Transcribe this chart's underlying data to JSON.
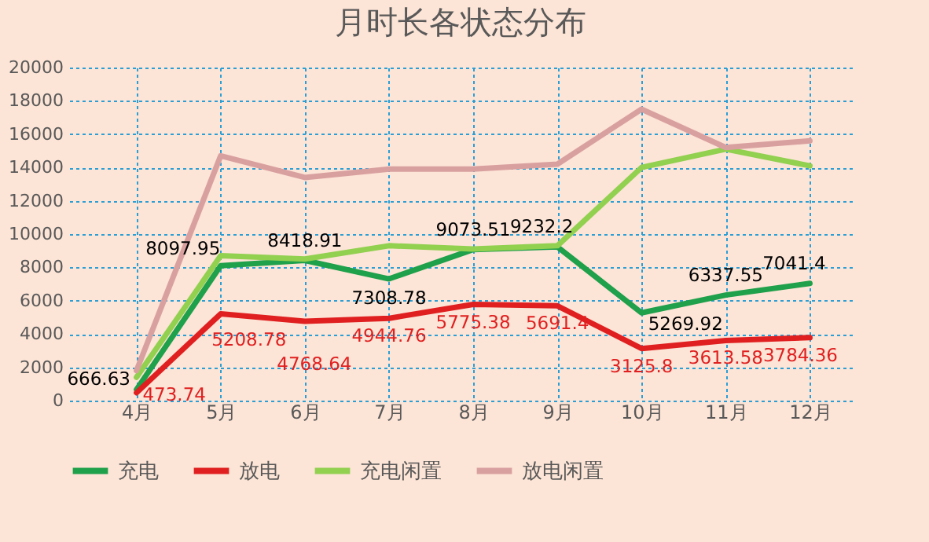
{
  "chart_data": {
    "type": "line",
    "title": "月时长各状态分布",
    "categories": [
      "4月",
      "5月",
      "6月",
      "7月",
      "8月",
      "9月",
      "10月",
      "11月",
      "12月"
    ],
    "series": [
      {
        "name": "充电",
        "color": "#1fa04a",
        "values": [
          666.63,
          8097.95,
          8418.91,
          7308.78,
          9073.51,
          9232.2,
          5269.92,
          6337.55,
          7041.4
        ],
        "value_labels": [
          "666.63",
          "8097.95",
          "8418.91",
          "7308.78",
          "9073.51",
          "9232.2",
          "5269.92",
          "6337.55",
          "7041.4"
        ]
      },
      {
        "name": "放电",
        "color": "#e02020",
        "values": [
          473.74,
          5208.78,
          4768.64,
          4944.76,
          5775.38,
          5691.4,
          3125.8,
          3613.58,
          3784.36
        ],
        "value_labels": [
          "473.74",
          "5208.78",
          "4768.64",
          "4944.76",
          "5775.38",
          "5691.4",
          "3125.8",
          "3613.58",
          "3784.36"
        ]
      },
      {
        "name": "充电闲置",
        "color": "#92d050",
        "values": [
          1400,
          8700,
          8500,
          9300,
          9100,
          9300,
          14000,
          15100,
          14100
        ]
      },
      {
        "name": "放电闲置",
        "color": "#d9a0a0",
        "values": [
          1800,
          14700,
          13400,
          13900,
          13900,
          14200,
          17500,
          15200,
          15600
        ]
      }
    ],
    "ylim": [
      0,
      20000
    ],
    "yticks": [
      0,
      2000,
      4000,
      6000,
      8000,
      10000,
      12000,
      14000,
      16000,
      18000,
      20000
    ],
    "grid": true,
    "legend": "bottom",
    "line_style": "solid",
    "marker": "none"
  }
}
